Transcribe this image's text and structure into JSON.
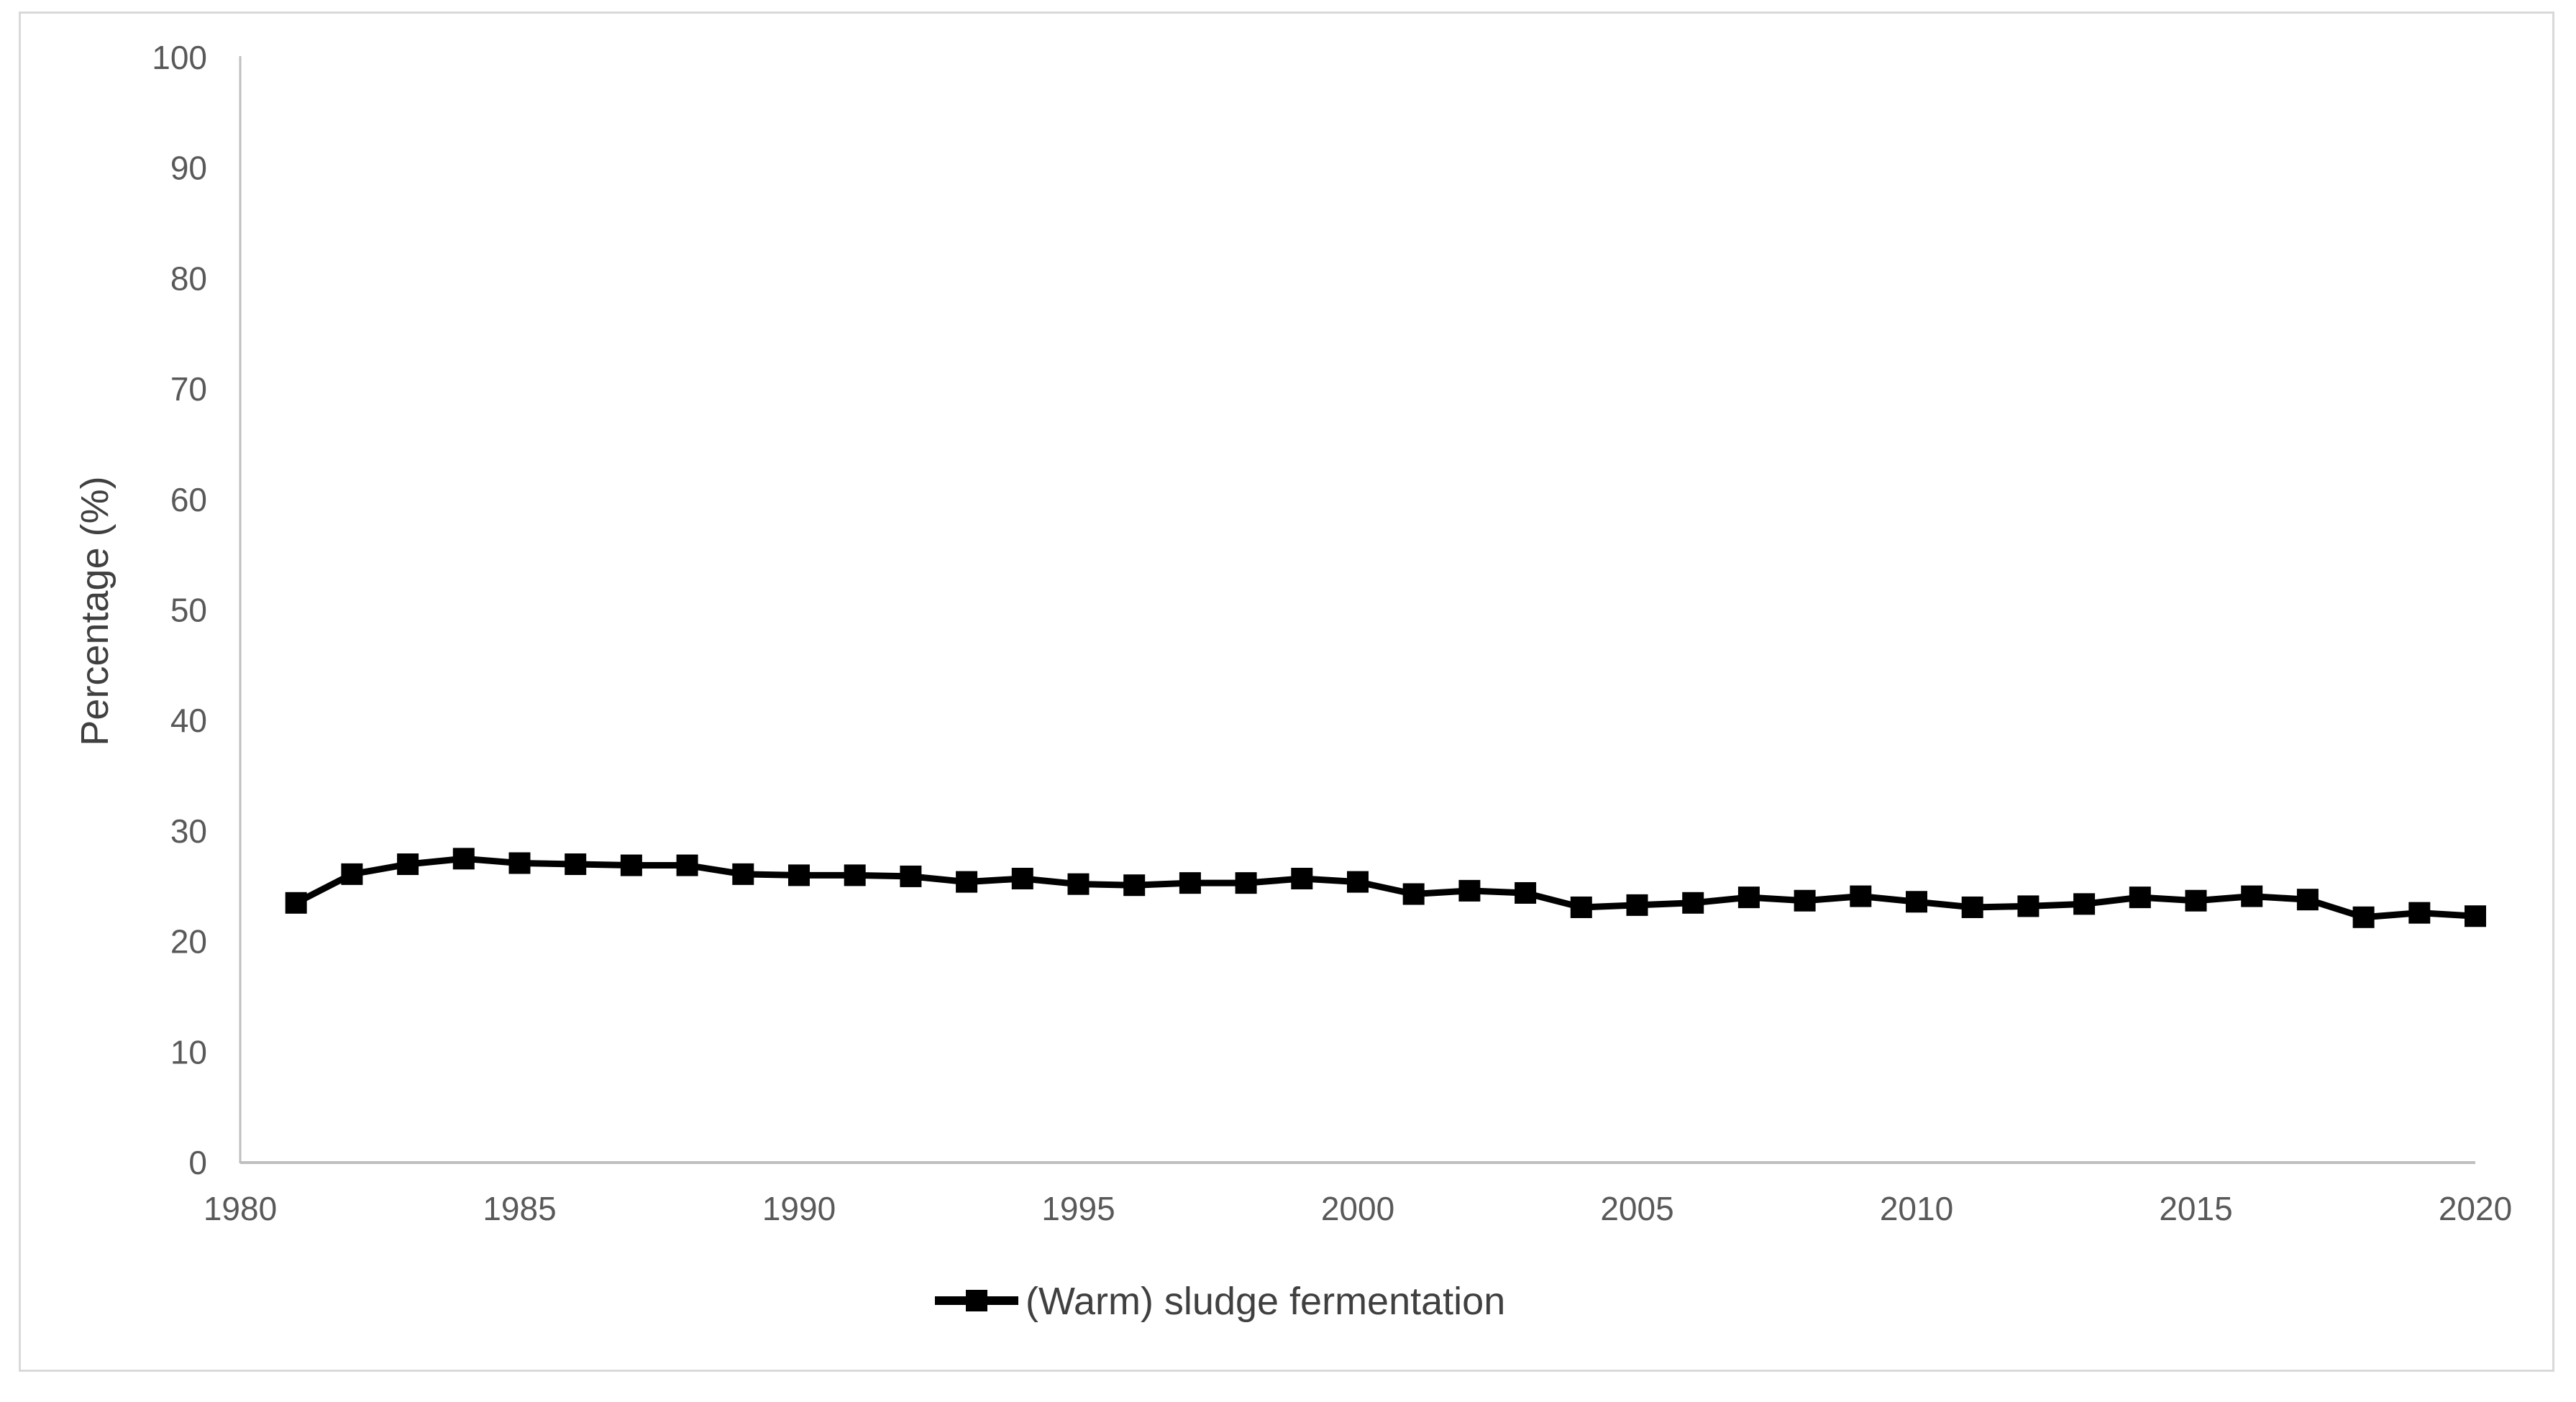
{
  "chart_data": {
    "type": "line",
    "title": "",
    "xlabel": "",
    "ylabel": "Percentage (%)",
    "x": [
      1981,
      1982,
      1983,
      1984,
      1985,
      1986,
      1987,
      1988,
      1989,
      1990,
      1991,
      1992,
      1993,
      1994,
      1995,
      1996,
      1997,
      1998,
      1999,
      2000,
      2001,
      2002,
      2003,
      2004,
      2005,
      2006,
      2007,
      2008,
      2009,
      2010,
      2011,
      2012,
      2013,
      2014,
      2015,
      2016,
      2017,
      2018,
      2019,
      2020
    ],
    "series": [
      {
        "name": "(Warm) sludge fermentation",
        "color": "#000000",
        "marker": "square",
        "values": [
          23.5,
          26.1,
          27.0,
          27.5,
          27.1,
          27.0,
          26.9,
          26.9,
          26.1,
          26.0,
          26.0,
          25.9,
          25.4,
          25.7,
          25.2,
          25.1,
          25.3,
          25.3,
          25.7,
          25.4,
          24.3,
          24.6,
          24.4,
          23.1,
          23.3,
          23.5,
          24.0,
          23.7,
          24.1,
          23.6,
          23.1,
          23.2,
          23.4,
          24.0,
          23.7,
          24.1,
          23.8,
          22.2,
          22.6,
          22.3
        ]
      }
    ],
    "xlim": [
      1980,
      2020
    ],
    "ylim": [
      0,
      100
    ],
    "xticks": [
      1980,
      1985,
      1990,
      1995,
      2000,
      2005,
      2010,
      2015,
      2020
    ],
    "yticks": [
      0,
      10,
      20,
      30,
      40,
      50,
      60,
      70,
      80,
      90,
      100
    ],
    "grid": "off",
    "legend_position": "bottom-center",
    "axis_line_color": "#bfbfbf",
    "tick_label_color": "#595959",
    "text_color": "#404040",
    "series_color": "#000000"
  }
}
